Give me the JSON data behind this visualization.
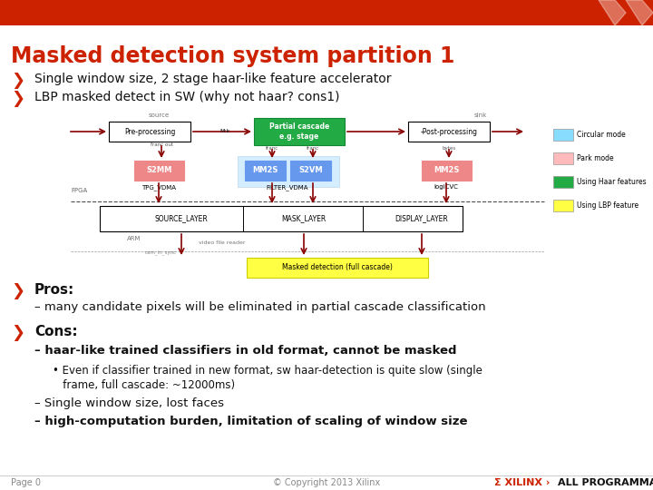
{
  "title": "Masked detection system partition 1",
  "title_color": "#CC2200",
  "header_bar_color": "#CC2200",
  "bg_color": "#FFFFFF",
  "bullet_color": "#CC2200",
  "bullet1": "Single window size, 2 stage haar-like feature accelerator",
  "bullet2": "LBP masked detect in SW (why not haar? cons1)",
  "pros_label": "Pros:",
  "pros_text": "– many candidate pixels will be eliminated in partial cascade classification",
  "cons_label": "Cons:",
  "cons1": "– haar-like trained classifiers in old format, cannot be masked",
  "cons1_sub1": "• Even if classifier trained in new format, sw haar-detection is quite slow (single",
  "cons1_sub2": "   frame, full cascade: ~12000ms)",
  "cons2": "– Single window size, lost faces",
  "cons3": "– high-computation burden, limitation of scaling of window size",
  "footer_left": "Page 0",
  "footer_center": "© Copyright 2013 Xilinx",
  "footer_right_red": "Σ XILINX ›",
  "footer_right_black": "ALL PROGRAMMABLE.",
  "text_color": "#111111",
  "footer_color": "#888888",
  "legend_items": [
    [
      "#88DDFF",
      "Circular mode"
    ],
    [
      "#FFBBBB",
      "Park mode"
    ],
    [
      "#22AA44",
      "Using Haar features"
    ],
    [
      "#FFFF44",
      "Using LBP feature"
    ]
  ],
  "arrow_color": "#880000",
  "green_box_color": "#22AA44",
  "pink_box_color": "#EE8888",
  "blue_box_color": "#6699EE",
  "yellow_box_color": "#FFFF44"
}
